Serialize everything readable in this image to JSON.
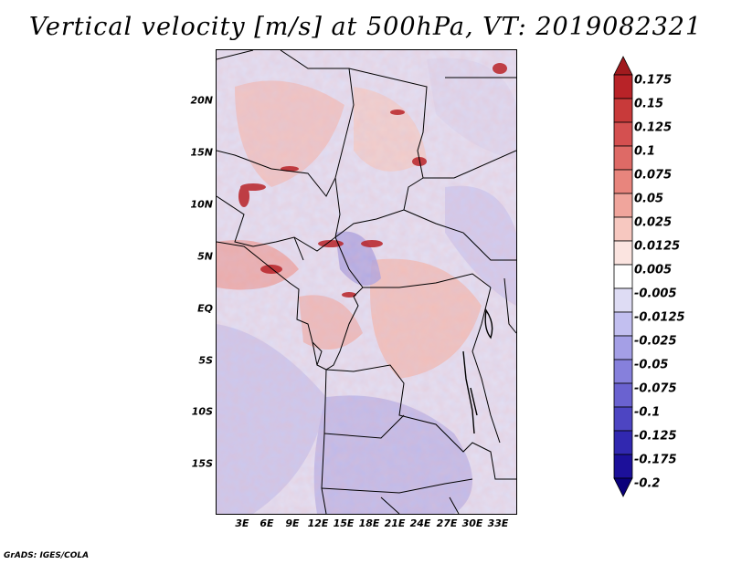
{
  "title": "Vertical velocity [m/s] at 500hPa, VT: 2019082321",
  "credit": "GrADS: IGES/COLA",
  "map": {
    "variable": "Vertical velocity",
    "units": "m/s",
    "level": "500hPa",
    "valid_time": "2019082321",
    "lat_labels": [
      "20N",
      "15N",
      "10N",
      "5N",
      "EQ",
      "5S",
      "10S",
      "15S"
    ],
    "lon_labels": [
      "3E",
      "6E",
      "9E",
      "12E",
      "15E",
      "18E",
      "21E",
      "24E",
      "27E",
      "30E",
      "33E"
    ]
  },
  "colorbar": {
    "labels": [
      "0.175",
      "0.15",
      "0.125",
      "0.1",
      "0.075",
      "0.05",
      "0.025",
      "0.0125",
      "0.005",
      "-0.005",
      "-0.0125",
      "-0.025",
      "-0.05",
      "-0.075",
      "-0.1",
      "-0.125",
      "-0.175",
      "-0.2"
    ],
    "colors": [
      "#a01a1e",
      "#b82328",
      "#c83a3a",
      "#d45050",
      "#de6a66",
      "#e8857d",
      "#f0a59c",
      "#f7c8c0",
      "#fbe4e0",
      "#ffffff",
      "#dedcf4",
      "#c2bff0",
      "#a49fe6",
      "#8680dc",
      "#6a62d0",
      "#4d45c2",
      "#3128b0",
      "#1c109a",
      "#0a007a"
    ]
  }
}
